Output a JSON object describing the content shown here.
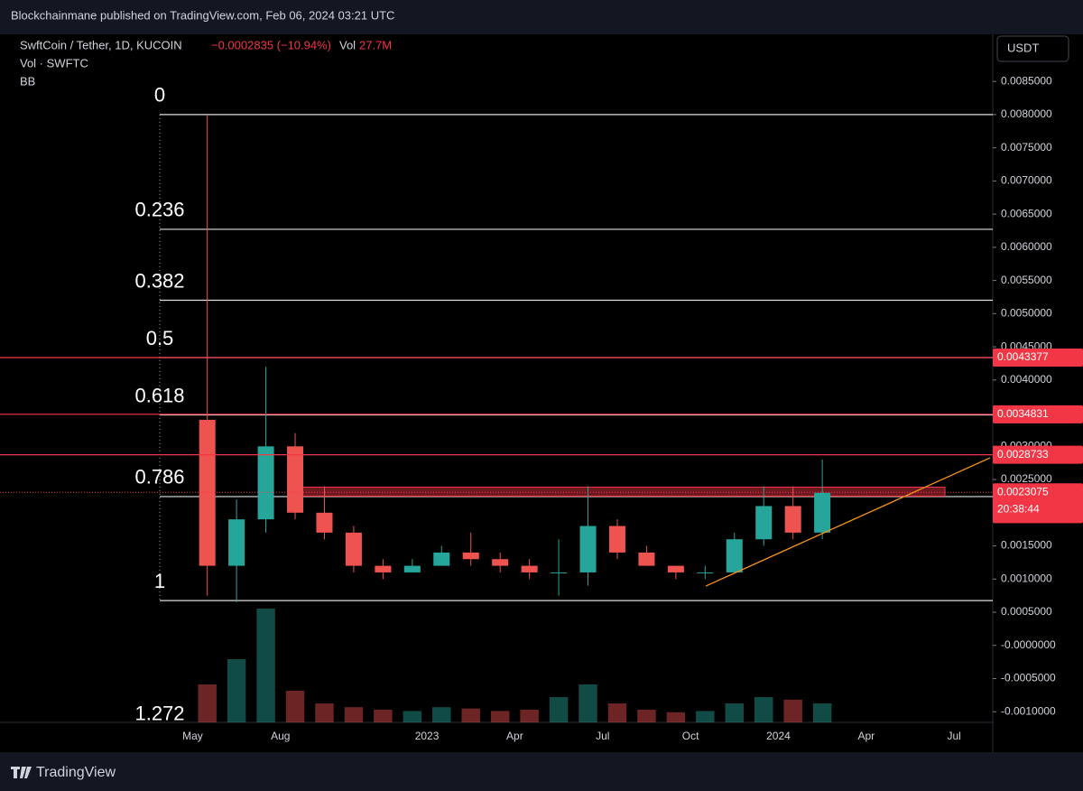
{
  "header": {
    "published": "Blockchainmane published on TradingView.com, Feb 06, 2024 03:21 UTC",
    "footer": "TradingView"
  },
  "legend": {
    "symbol": "SwftCoin / Tether, 1D, KUCOIN",
    "change": "−0.0002835 (−10.94%)",
    "vol_label": "Vol",
    "vol_value": "27.7M",
    "vol_line": "Vol · SWFTC",
    "bb": "BB",
    "currency": "USDT"
  },
  "chart_data": {
    "type": "candlestick",
    "categories": [
      null,
      "May",
      null,
      null,
      "Aug",
      null,
      null,
      null,
      null,
      "2023",
      null,
      null,
      "Apr",
      null,
      null,
      "Jul",
      null,
      null,
      "Oct",
      null,
      null,
      "2024",
      null,
      null,
      "Apr",
      null,
      null,
      "Jul"
    ],
    "open": [
      null,
      0.0034,
      0.0012,
      0.0019,
      0.003,
      0.002,
      0.0017,
      0.0012,
      0.0011,
      0.0012,
      0.0014,
      0.0013,
      0.0012,
      0.0011,
      0.0011,
      0.0018,
      0.0014,
      0.0012,
      0.0011,
      0.0011,
      0.0016,
      0.0021,
      0.0017,
      null,
      null,
      null,
      null,
      null
    ],
    "high": [
      null,
      0.008,
      0.0022,
      0.0042,
      0.0032,
      0.0024,
      0.0018,
      0.0013,
      0.0013,
      0.0015,
      0.0017,
      0.0014,
      0.0013,
      0.0016,
      0.0024,
      0.0019,
      0.0015,
      0.0012,
      0.0012,
      0.0017,
      0.0024,
      0.0024,
      0.0028,
      null,
      null,
      null,
      null,
      null
    ],
    "low": [
      null,
      0.00075,
      0.00065,
      0.0017,
      0.0019,
      0.0016,
      0.0011,
      0.001,
      0.0011,
      0.0012,
      0.0012,
      0.0011,
      0.001,
      0.00075,
      0.0009,
      0.0013,
      0.0012,
      0.001,
      0.001,
      0.0011,
      0.0015,
      0.0016,
      0.0016,
      null,
      null,
      null,
      null,
      null
    ],
    "close": [
      null,
      0.0012,
      0.0019,
      0.003,
      0.002,
      0.0017,
      0.0012,
      0.0011,
      0.0012,
      0.0014,
      0.0013,
      0.0012,
      0.0011,
      0.0011,
      0.0018,
      0.0014,
      0.0012,
      0.0011,
      0.0011,
      0.0016,
      0.0021,
      0.0017,
      0.0023,
      null,
      null,
      null,
      null,
      null
    ],
    "volume": [
      null,
      300,
      500,
      900,
      250,
      150,
      120,
      100,
      90,
      120,
      110,
      90,
      100,
      200,
      300,
      150,
      100,
      80,
      90,
      150,
      200,
      180,
      150,
      null,
      null,
      null,
      null,
      null
    ],
    "volume_ylim": [
      0,
      1000
    ],
    "up_color": "#26a69a",
    "down_color": "#ef5350",
    "ylim": [
      -0.00116,
      0.00921
    ],
    "yticks": [
      {
        "value": 0.0085,
        "label": "0.0085000"
      },
      {
        "value": 0.008,
        "label": "0.0080000"
      },
      {
        "value": 0.0075,
        "label": "0.0075000"
      },
      {
        "value": 0.007,
        "label": "0.0070000"
      },
      {
        "value": 0.0065,
        "label": "0.0065000"
      },
      {
        "value": 0.006,
        "label": "0.0060000"
      },
      {
        "value": 0.0055,
        "label": "0.0055000"
      },
      {
        "value": 0.005,
        "label": "0.0050000"
      },
      {
        "value": 0.0045,
        "label": "0.0045000"
      },
      {
        "value": 0.004,
        "label": "0.0040000"
      },
      {
        "value": 0.003,
        "label": "0.0030000"
      },
      {
        "value": 0.0025,
        "label": "0.0025000"
      },
      {
        "value": 0.0015,
        "label": "0.0015000"
      },
      {
        "value": 0.001,
        "label": "0.0010000"
      },
      {
        "value": 0.0005,
        "label": "0.0005000"
      },
      {
        "value": 0,
        "label": "-0.0000000"
      },
      {
        "value": -0.0005,
        "label": "-0.0005000"
      },
      {
        "value": -0.001,
        "label": "-0.0010000"
      }
    ],
    "fib": {
      "high": 0.008,
      "low": 0.000676,
      "levels": [
        0,
        0.236,
        0.382,
        0.5,
        0.618,
        0.786,
        1,
        1.272
      ]
    },
    "levels": [
      0.0043377,
      0.0034831,
      0.0028733,
      0.0022501
    ],
    "last_price": 0.0023075,
    "countdown": "20:38:44",
    "zone": [
      0.0022501,
      0.002385
    ],
    "trendline": [
      0.000894,
      0.002827
    ],
    "level_color": "#f23645",
    "trend_color": "#f7931a"
  }
}
